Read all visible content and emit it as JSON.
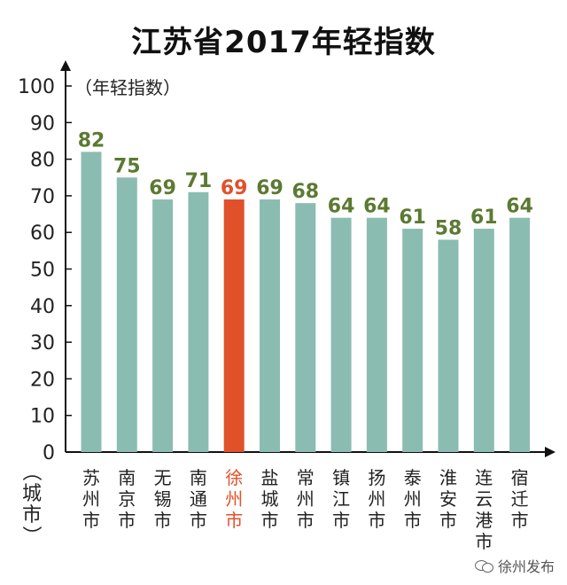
{
  "title": "江苏省2017年轻指数",
  "watermark": "徐州发布",
  "colors": {
    "bar": "#8bbcb2",
    "highlight_bar": "#e0512a",
    "value_label": "#5b7a32",
    "highlight_label": "#e0512a",
    "axis": "#111111"
  },
  "chart_data": {
    "type": "bar",
    "title": "江苏省2017年轻指数",
    "ylabel": "（年轻指数）",
    "xlabel": "（城市）",
    "ylim": [
      0,
      100
    ],
    "yticks": [
      0,
      10,
      20,
      30,
      40,
      50,
      60,
      70,
      80,
      90,
      100
    ],
    "categories": [
      "苏州市",
      "南京市",
      "无锡市",
      "南通市",
      "徐州市",
      "盐城市",
      "常州市",
      "镇江市",
      "扬州市",
      "泰州市",
      "淮安市",
      "连云港市",
      "宿迁市"
    ],
    "values": [
      82,
      75,
      69,
      71,
      69,
      69,
      68,
      64,
      64,
      61,
      58,
      61,
      64
    ],
    "highlight": "徐州市",
    "grid": false,
    "data_labels": true
  }
}
